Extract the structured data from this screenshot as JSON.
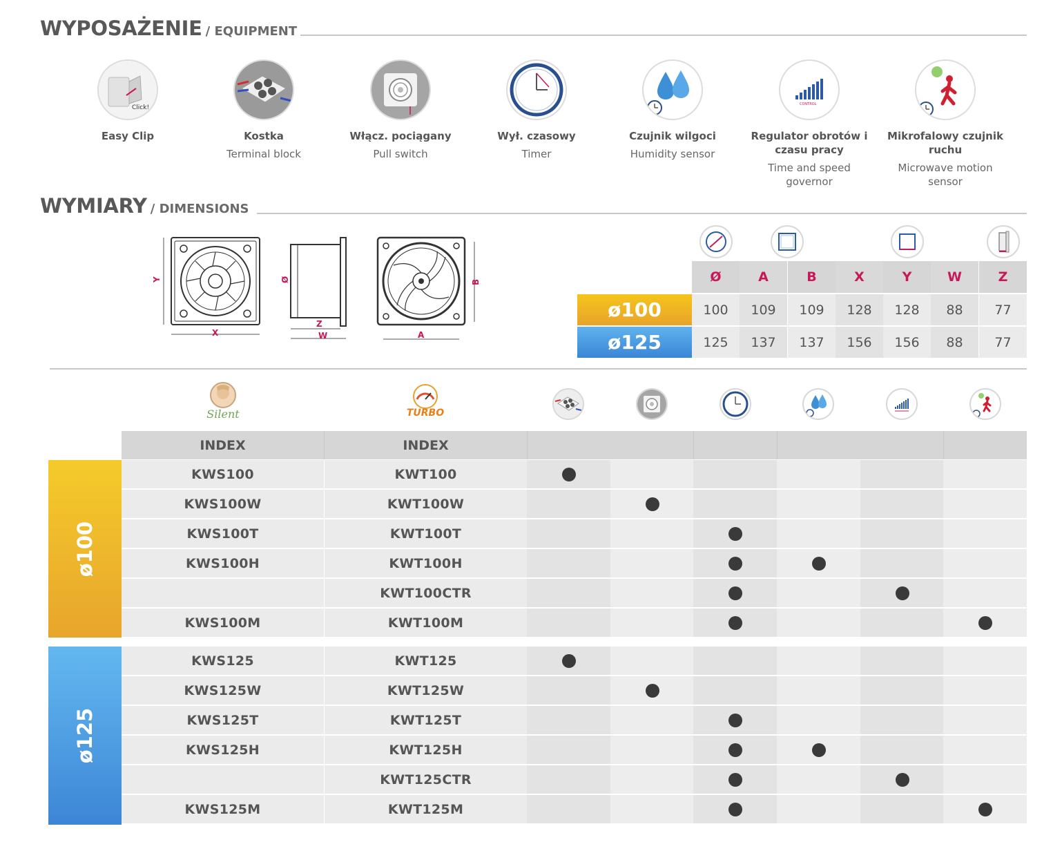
{
  "equipment_section": {
    "title": "WYPOSAŻENIE",
    "subtitle": "/ EQUIPMENT"
  },
  "equipment": [
    {
      "icon": "easy-clip-icon",
      "pl": "Easy Clip",
      "en": ""
    },
    {
      "icon": "terminal-block-icon",
      "pl": "Kostka",
      "en": "Terminal block"
    },
    {
      "icon": "pull-switch-icon",
      "pl": "Włącz. pociągany",
      "en": "Pull switch"
    },
    {
      "icon": "timer-icon",
      "pl": "Wył. czasowy",
      "en": "Timer"
    },
    {
      "icon": "humidity-sensor-icon",
      "pl": "Czujnik wilgoci",
      "en": "Humidity sensor"
    },
    {
      "icon": "speed-governor-icon",
      "pl": "Regulator obrotów i czasu pracy",
      "en": "Time and speed governor",
      "icon_text": "CONTROL"
    },
    {
      "icon": "motion-sensor-icon",
      "pl": "Mikrofalowy czujnik ruchu",
      "en": "Microwave motion sensor"
    }
  ],
  "equipment_icon_text": {
    "clip": "Click!",
    "control": "CONTROL"
  },
  "dimensions_section": {
    "title": "WYMIARY",
    "subtitle": "/ DIMENSIONS"
  },
  "drawings": {
    "front_labels": {
      "y": "Y",
      "x": "X"
    },
    "side_labels": {
      "d": "Ø",
      "z": "Z",
      "w": "W"
    },
    "back_labels": {
      "b": "B",
      "a": "A"
    }
  },
  "dimensions_table": {
    "headers": [
      "Ø",
      "A",
      "B",
      "X",
      "Y",
      "W",
      "Z"
    ],
    "rows": [
      {
        "label": "ø100",
        "values": [
          "100",
          "109",
          "109",
          "128",
          "128",
          "88",
          "77"
        ]
      },
      {
        "label": "ø125",
        "values": [
          "125",
          "137",
          "137",
          "156",
          "156",
          "88",
          "77"
        ]
      }
    ]
  },
  "series": {
    "silent": {
      "logo_text": "Silent",
      "header": "INDEX"
    },
    "turbo": {
      "logo_text": "TURBO",
      "header": "INDEX"
    }
  },
  "feature_columns": [
    "terminal-block",
    "pull-switch",
    "timer",
    "humidity-sensor",
    "speed-governor",
    "motion-sensor"
  ],
  "groups": [
    {
      "label": "ø100",
      "rows": [
        {
          "silent": "KWS100",
          "turbo": "KWT100",
          "features": [
            1,
            0,
            0,
            0,
            0,
            0
          ]
        },
        {
          "silent": "KWS100W",
          "turbo": "KWT100W",
          "features": [
            0,
            1,
            0,
            0,
            0,
            0
          ]
        },
        {
          "silent": "KWS100T",
          "turbo": "KWT100T",
          "features": [
            0,
            0,
            1,
            0,
            0,
            0
          ]
        },
        {
          "silent": "KWS100H",
          "turbo": "KWT100H",
          "features": [
            0,
            0,
            1,
            1,
            0,
            0
          ]
        },
        {
          "silent": "",
          "turbo": "KWT100CTR",
          "features": [
            0,
            0,
            1,
            0,
            1,
            0
          ]
        },
        {
          "silent": "KWS100M",
          "turbo": "KWT100M",
          "features": [
            0,
            0,
            1,
            0,
            0,
            1
          ]
        }
      ]
    },
    {
      "label": "ø125",
      "rows": [
        {
          "silent": "KWS125",
          "turbo": "KWT125",
          "features": [
            1,
            0,
            0,
            0,
            0,
            0
          ]
        },
        {
          "silent": "KWS125W",
          "turbo": "KWT125W",
          "features": [
            0,
            1,
            0,
            0,
            0,
            0
          ]
        },
        {
          "silent": "KWS125T",
          "turbo": "KWT125T",
          "features": [
            0,
            0,
            1,
            0,
            0,
            0
          ]
        },
        {
          "silent": "KWS125H",
          "turbo": "KWT125H",
          "features": [
            0,
            0,
            1,
            1,
            0,
            0
          ]
        },
        {
          "silent": "",
          "turbo": "KWT125CTR",
          "features": [
            0,
            0,
            1,
            0,
            1,
            0
          ]
        },
        {
          "silent": "KWS125M",
          "turbo": "KWT125M",
          "features": [
            0,
            0,
            1,
            0,
            0,
            1
          ]
        }
      ]
    }
  ],
  "colors": {
    "accent_pink": "#c8185a",
    "yellow": "#f5c51c",
    "blue": "#4a9be2",
    "dot": "#3a3a3a"
  }
}
